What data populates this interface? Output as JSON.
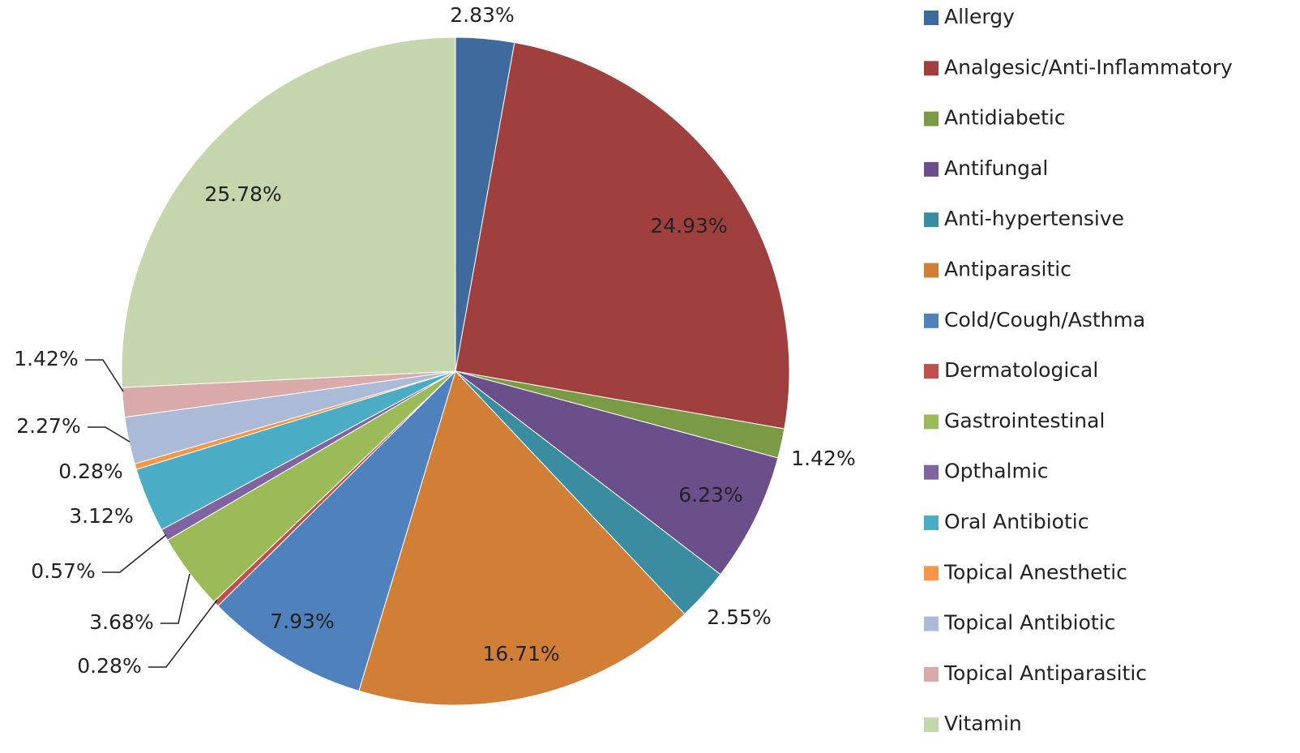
{
  "chart_data": {
    "type": "pie",
    "categories": [
      "Allergy",
      "Analgesic/Anti-Inflammatory",
      "Antidiabetic",
      "Antifungal",
      "Anti-hypertensive",
      "Antiparasitic",
      "Cold/Cough/Asthma",
      "Dermatological",
      "Gastrointestinal",
      "Opthalmic",
      "Oral Antibiotic",
      "Topical Anesthetic",
      "Topical Antibiotic",
      "Topical Antiparasitic",
      "Vitamin"
    ],
    "values": [
      2.83,
      24.93,
      1.42,
      6.23,
      2.55,
      16.71,
      7.93,
      0.28,
      3.68,
      0.57,
      3.12,
      0.28,
      2.27,
      1.42,
      25.78
    ],
    "value_labels": [
      "2.83%",
      "24.93%",
      "1.42%",
      "6.23%",
      "2.55%",
      "16.71%",
      "7.93%",
      "0.28%",
      "3.68%",
      "0.57%",
      "3.12%",
      "0.28%",
      "2.27%",
      "1.42%",
      "25.78%"
    ],
    "colors": [
      "#3f6a9d",
      "#a0403e",
      "#7b9a45",
      "#6a4f8b",
      "#3a8ca0",
      "#d17e36",
      "#4f81bd",
      "#c0504d",
      "#9bbb59",
      "#8064a2",
      "#4bacc6",
      "#f79646",
      "#aabad7",
      "#d9aaa9",
      "#c6d6ac"
    ],
    "legend": "right"
  }
}
